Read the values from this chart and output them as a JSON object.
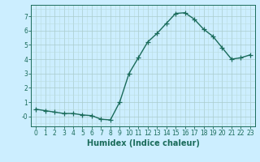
{
  "x": [
    0,
    1,
    2,
    3,
    4,
    5,
    6,
    7,
    8,
    9,
    10,
    11,
    12,
    13,
    14,
    15,
    16,
    17,
    18,
    19,
    20,
    21,
    22,
    23
  ],
  "y": [
    0.5,
    0.4,
    0.3,
    0.2,
    0.2,
    0.1,
    0.05,
    -0.2,
    -0.25,
    1.0,
    3.0,
    4.1,
    5.2,
    5.8,
    6.5,
    7.2,
    7.25,
    6.8,
    6.1,
    5.6,
    4.8,
    4.0,
    4.1,
    4.3
  ],
  "line_color": "#1a6b5a",
  "marker": "+",
  "marker_size": 4,
  "linewidth": 1.0,
  "background_color": "#cceeff",
  "grid_major_color": "#aacccc",
  "grid_minor_color": "#bbdddd",
  "axis_color": "#1a6b5a",
  "xlabel": "Humidex (Indice chaleur)",
  "xlabel_fontsize": 7,
  "xlim": [
    -0.5,
    23.5
  ],
  "ylim": [
    -0.7,
    7.8
  ],
  "yticks": [
    0,
    1,
    2,
    3,
    4,
    5,
    6,
    7
  ],
  "ytick_labels": [
    "-0",
    "1",
    "2",
    "3",
    "4",
    "5",
    "6",
    "7"
  ],
  "xtick_labels": [
    "0",
    "1",
    "2",
    "3",
    "4",
    "5",
    "6",
    "7",
    "8",
    "9",
    "10",
    "11",
    "12",
    "13",
    "14",
    "15",
    "16",
    "17",
    "18",
    "19",
    "20",
    "21",
    "22",
    "23"
  ],
  "tick_fontsize": 5.5,
  "figsize": [
    3.2,
    2.0
  ],
  "dpi": 100
}
